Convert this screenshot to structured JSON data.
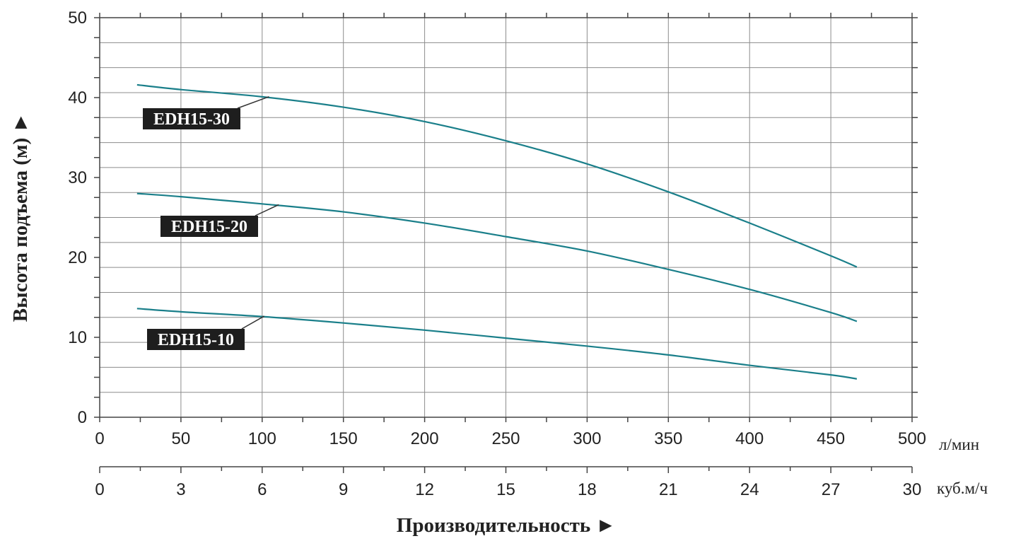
{
  "chart_data": {
    "type": "line",
    "ylabel": "Высота подъема (м) ►",
    "xlabel": "Производительность ►",
    "ylim": [
      0,
      50
    ],
    "y_ticks": [
      0,
      10,
      20,
      30,
      40,
      50
    ],
    "x_axes": [
      {
        "unit": "л/мин",
        "range": [
          0,
          500
        ],
        "ticks": [
          0,
          50,
          100,
          150,
          200,
          250,
          300,
          350,
          400,
          450,
          500
        ]
      },
      {
        "unit": "куб.м/ч",
        "range": [
          0,
          30
        ],
        "ticks": [
          0,
          3,
          6,
          9,
          12,
          15,
          18,
          21,
          24,
          27,
          30
        ]
      }
    ],
    "grid": true,
    "line_color": "#1a7f8a",
    "series": [
      {
        "name": "EDH15-30",
        "x": [
          23,
          50,
          100,
          150,
          200,
          250,
          300,
          350,
          400,
          450,
          466
        ],
        "y": [
          41.6,
          41.0,
          40.1,
          38.8,
          37.0,
          34.6,
          31.7,
          28.2,
          24.3,
          20.2,
          18.8
        ]
      },
      {
        "name": "EDH15-20",
        "x": [
          23,
          50,
          100,
          150,
          200,
          250,
          300,
          350,
          400,
          450,
          466
        ],
        "y": [
          28.0,
          27.6,
          26.7,
          25.7,
          24.3,
          22.6,
          20.8,
          18.5,
          16.0,
          13.1,
          12.0
        ]
      },
      {
        "name": "EDH15-10",
        "x": [
          23,
          50,
          100,
          150,
          200,
          250,
          300,
          350,
          400,
          450,
          466
        ],
        "y": [
          13.6,
          13.2,
          12.6,
          11.8,
          10.9,
          9.9,
          8.9,
          7.8,
          6.5,
          5.3,
          4.8
        ]
      }
    ]
  }
}
